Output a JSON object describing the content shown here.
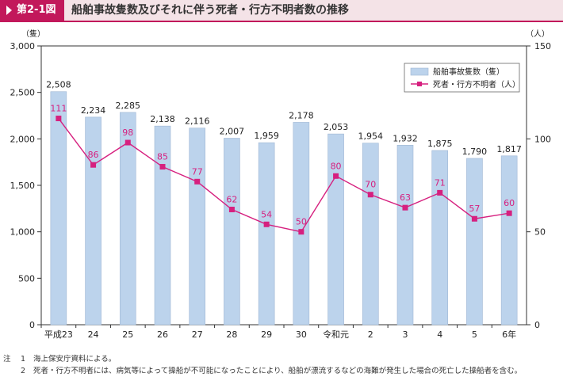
{
  "header": {
    "badge": "第2-1図",
    "title": "船舶事故隻数及びそれに伴う死者・行方不明者数の推移"
  },
  "chart_data": {
    "type": "bar+line",
    "categories": [
      "平成23",
      "24",
      "25",
      "26",
      "27",
      "28",
      "29",
      "30",
      "令和元",
      "2",
      "3",
      "4",
      "5",
      "6年"
    ],
    "series": [
      {
        "name": "船舶事故隻数（隻）",
        "type": "bar",
        "axis": "left",
        "color": "#bcd3ec",
        "values": [
          2508,
          2234,
          2285,
          2138,
          2116,
          2007,
          1959,
          2178,
          2053,
          1954,
          1932,
          1875,
          1790,
          1817
        ]
      },
      {
        "name": "死者・行方不明者（人）",
        "type": "line",
        "axis": "right",
        "color": "#d6207f",
        "values": [
          111,
          86,
          98,
          85,
          77,
          62,
          54,
          50,
          80,
          70,
          63,
          71,
          57,
          60
        ]
      }
    ],
    "y_left": {
      "unit": "（隻）",
      "ylim": [
        0,
        3000
      ],
      "ticks": [
        "0",
        "500",
        "1,000",
        "1,500",
        "2,000",
        "2,500",
        "3,000"
      ]
    },
    "y_right": {
      "unit": "（人）",
      "ylim": [
        0,
        150
      ],
      "ticks": [
        "0",
        "50",
        "100",
        "150"
      ]
    },
    "bar_labels": [
      "2,508",
      "2,234",
      "2,285",
      "2,138",
      "2,116",
      "2,007",
      "1,959",
      "2,178",
      "2,053",
      "1,954",
      "1,932",
      "1,875",
      "1,790",
      "1,817"
    ],
    "legend_position": "top-right"
  },
  "notes": [
    {
      "lead": "注",
      "num": "1",
      "text": "海上保安庁資料による。"
    },
    {
      "lead": "",
      "num": "2",
      "text": "死者・行方不明者には、病気等によって操船が不可能になったことにより、船舶が漂流するなどの海難が発生した場合の死亡した操船者を含む。"
    }
  ]
}
